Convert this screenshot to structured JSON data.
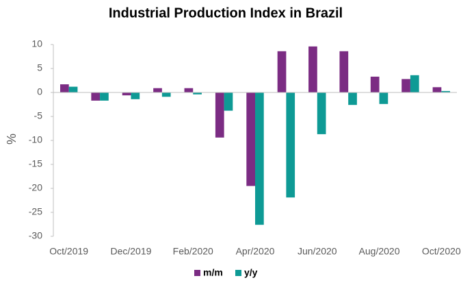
{
  "chart_data": {
    "type": "bar",
    "title": "Industrial Production Index in Brazil",
    "y_label": "%",
    "categories": [
      "Oct/2019",
      null,
      "Dec/2019",
      null,
      "Feb/2020",
      null,
      "Apr/2020",
      null,
      "Jun/2020",
      null,
      "Aug/2020",
      null,
      "Oct/2020"
    ],
    "series": [
      {
        "name": "m/m",
        "color": "#7b2c83",
        "values": [
          1.7,
          -1.7,
          -0.6,
          0.9,
          0.9,
          -9.4,
          -19.5,
          8.6,
          9.6,
          8.6,
          3.3,
          2.8,
          1.1
        ]
      },
      {
        "name": "y/y",
        "color": "#0e9a95",
        "values": [
          1.2,
          -1.7,
          -1.4,
          -0.9,
          -0.4,
          -3.8,
          -27.6,
          -21.9,
          -8.7,
          -2.6,
          -2.4,
          3.6,
          0.3
        ]
      }
    ],
    "ylim": [
      -30,
      10
    ],
    "yticks": [
      10,
      5,
      0,
      -5,
      -10,
      -15,
      -20,
      -25,
      -30
    ],
    "grid": false,
    "legend": "bottom"
  }
}
